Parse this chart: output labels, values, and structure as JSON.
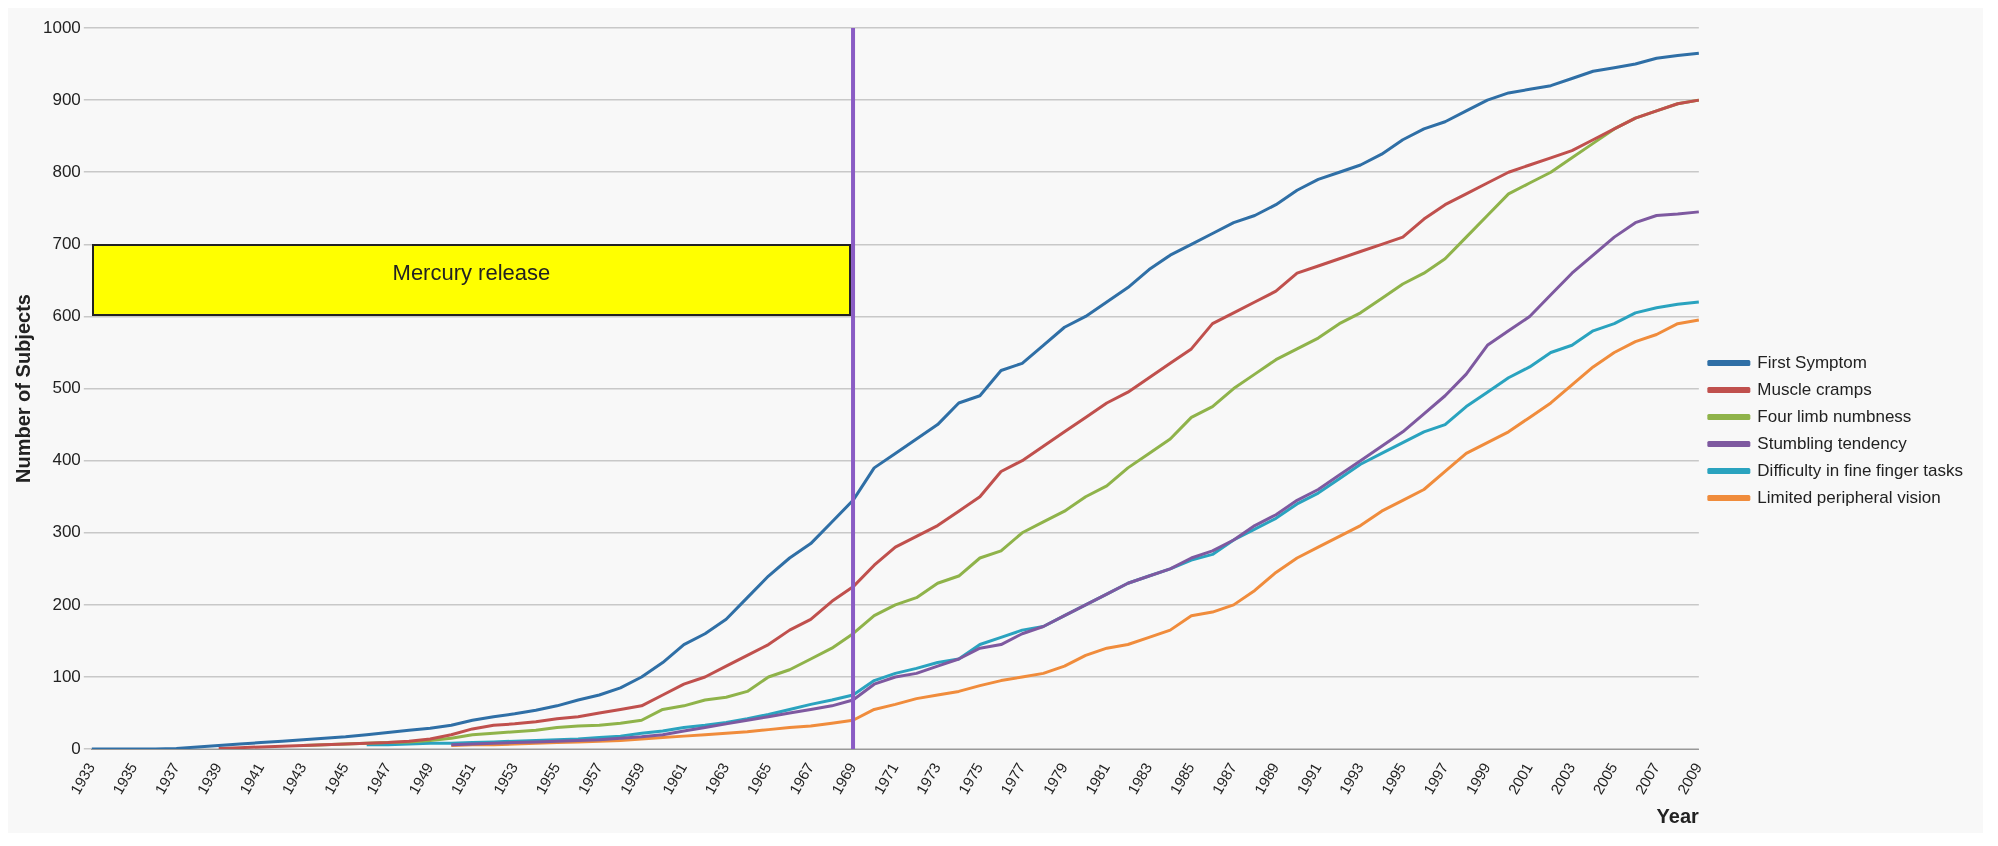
{
  "chart_data": {
    "type": "line",
    "xlabel": "Year",
    "ylabel": "Number of Subjects",
    "categories": [
      "1933",
      null,
      "1935",
      null,
      "1937",
      null,
      "1939",
      null,
      "1941",
      null,
      "1943",
      null,
      "1945",
      null,
      "1947",
      null,
      "1949",
      null,
      "1951",
      null,
      "1953",
      null,
      "1955",
      null,
      "1957",
      null,
      "1959",
      null,
      "1961",
      null,
      "1963",
      null,
      "1965",
      null,
      "1967",
      null,
      "1969",
      null,
      "1971",
      null,
      "1973",
      null,
      "1975",
      null,
      "1977",
      null,
      "1979",
      null,
      "1981",
      null,
      "1983",
      null,
      "1985",
      null,
      "1987",
      null,
      "1989",
      null,
      "1991",
      null,
      "1993",
      null,
      "1995",
      null,
      "1997",
      null,
      "1999",
      null,
      "2001",
      null,
      "2003",
      null,
      "2005",
      null,
      "2007",
      null,
      "2009"
    ],
    "series": [
      {
        "name": "First Symptom",
        "color": "#2f6fa6",
        "values": [
          0,
          0,
          0,
          0,
          1,
          3,
          5,
          7,
          9,
          11,
          13,
          15,
          17,
          20,
          23,
          26,
          29,
          33,
          40,
          45,
          49,
          54,
          60,
          68,
          75,
          85,
          100,
          120,
          145,
          160,
          180,
          210,
          240,
          265,
          285,
          315,
          345,
          390,
          410,
          430,
          450,
          480,
          490,
          525,
          535,
          560,
          585,
          600,
          620,
          640,
          665,
          685,
          700,
          715,
          730,
          740,
          755,
          775,
          790,
          800,
          810,
          825,
          845,
          860,
          870,
          885,
          900,
          910,
          915,
          920,
          930,
          940,
          945,
          950,
          958,
          962,
          965
        ]
      },
      {
        "name": "Muscle cramps",
        "color": "#c0504d",
        "values": [
          null,
          null,
          null,
          null,
          null,
          null,
          1,
          2,
          3,
          4,
          5,
          6,
          7,
          8,
          9,
          11,
          14,
          20,
          28,
          33,
          35,
          38,
          42,
          45,
          50,
          55,
          60,
          75,
          90,
          100,
          115,
          130,
          145,
          165,
          180,
          205,
          225,
          255,
          280,
          295,
          310,
          330,
          350,
          385,
          400,
          420,
          440,
          460,
          480,
          495,
          515,
          535,
          555,
          590,
          605,
          620,
          635,
          660,
          670,
          680,
          690,
          700,
          710,
          735,
          755,
          770,
          785,
          800,
          810,
          820,
          830,
          845,
          860,
          875,
          885,
          895,
          900
        ]
      },
      {
        "name": "Four limb numbness",
        "color": "#8fb34a",
        "values": [
          null,
          null,
          null,
          null,
          null,
          null,
          null,
          null,
          null,
          null,
          5,
          6,
          7,
          8,
          9,
          10,
          12,
          15,
          20,
          22,
          24,
          26,
          30,
          32,
          33,
          36,
          40,
          55,
          60,
          68,
          72,
          80,
          100,
          110,
          125,
          140,
          160,
          185,
          200,
          210,
          230,
          240,
          265,
          275,
          300,
          315,
          330,
          350,
          365,
          390,
          410,
          430,
          460,
          475,
          500,
          520,
          540,
          555,
          570,
          590,
          605,
          625,
          645,
          660,
          680,
          710,
          740,
          770,
          785,
          800,
          820,
          840,
          860,
          875,
          885,
          895,
          900
        ]
      },
      {
        "name": "Stumbling tendency",
        "color": "#7e59a0",
        "values": [
          null,
          null,
          null,
          null,
          null,
          null,
          null,
          null,
          null,
          null,
          null,
          null,
          null,
          null,
          null,
          null,
          null,
          6,
          7,
          8,
          9,
          10,
          11,
          12,
          13,
          15,
          17,
          20,
          25,
          30,
          35,
          40,
          45,
          50,
          55,
          60,
          68,
          90,
          100,
          105,
          115,
          125,
          140,
          145,
          160,
          170,
          185,
          200,
          215,
          230,
          240,
          250,
          265,
          275,
          290,
          310,
          325,
          345,
          360,
          380,
          400,
          420,
          440,
          465,
          490,
          520,
          560,
          580,
          600,
          630,
          660,
          685,
          710,
          730,
          740,
          742,
          745
        ]
      },
      {
        "name": "Difficulty in fine finger tasks",
        "color": "#2aa3bf",
        "values": [
          null,
          null,
          null,
          null,
          null,
          null,
          null,
          null,
          null,
          null,
          null,
          null,
          null,
          6,
          6,
          7,
          8,
          8,
          9,
          10,
          11,
          12,
          13,
          14,
          16,
          18,
          22,
          25,
          30,
          33,
          37,
          42,
          48,
          55,
          62,
          68,
          75,
          95,
          105,
          112,
          120,
          125,
          145,
          155,
          165,
          170,
          185,
          200,
          215,
          230,
          240,
          250,
          262,
          270,
          290,
          305,
          320,
          340,
          355,
          375,
          395,
          410,
          425,
          440,
          450,
          475,
          495,
          515,
          530,
          550,
          560,
          580,
          590,
          605,
          612,
          617,
          620
        ]
      },
      {
        "name": "Limited peripheral vision",
        "color": "#f08c3c",
        "values": [
          null,
          null,
          null,
          null,
          null,
          null,
          null,
          null,
          null,
          null,
          null,
          null,
          null,
          null,
          null,
          null,
          null,
          5,
          6,
          6,
          7,
          8,
          9,
          10,
          11,
          12,
          14,
          16,
          18,
          20,
          22,
          24,
          27,
          30,
          32,
          36,
          40,
          55,
          62,
          70,
          75,
          80,
          88,
          95,
          100,
          105,
          115,
          130,
          140,
          145,
          155,
          165,
          185,
          190,
          200,
          220,
          245,
          265,
          280,
          295,
          310,
          330,
          345,
          360,
          385,
          410,
          425,
          440,
          460,
          480,
          505,
          530,
          550,
          565,
          575,
          590,
          595
        ]
      }
    ],
    "ylim": [
      0,
      1000
    ],
    "yticks": [
      0,
      100,
      200,
      300,
      400,
      500,
      600,
      700,
      800,
      900,
      1000
    ],
    "grid": "y",
    "legend": "right",
    "ref_lines": [
      {
        "axis": "x",
        "value": "1969",
        "color": "#8a5cc4"
      }
    ],
    "annotations": [
      "Mercury release"
    ]
  }
}
